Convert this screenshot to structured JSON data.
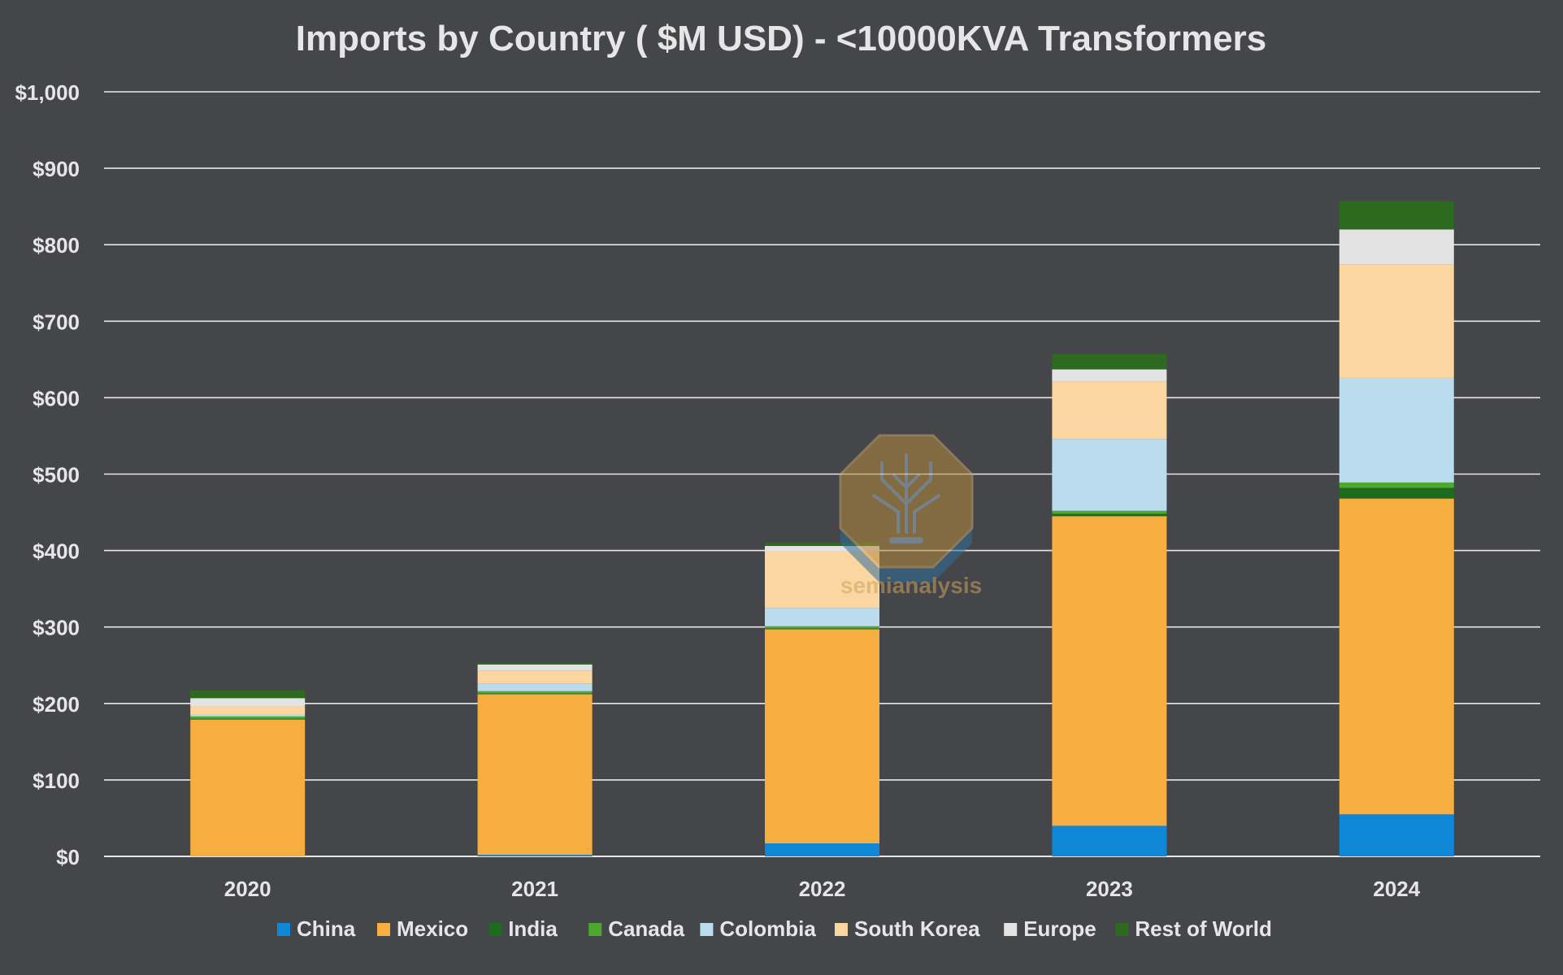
{
  "chart_data": {
    "type": "bar",
    "stacked": true,
    "title": "Imports by Country ( $M USD) - <10000KVA Transformers",
    "xlabel": "",
    "ylabel": "",
    "ylim": [
      0,
      1000
    ],
    "y_ticks": [
      0,
      100,
      200,
      300,
      400,
      500,
      600,
      700,
      800,
      900,
      1000
    ],
    "y_tick_labels": [
      "$0",
      "$100",
      "$200",
      "$300",
      "$400",
      "$500",
      "$600",
      "$700",
      "$800",
      "$900",
      "$1,000"
    ],
    "grid": true,
    "legend_position": "bottom",
    "categories": [
      "2020",
      "2021",
      "2022",
      "2023",
      "2024"
    ],
    "series": [
      {
        "name": "China",
        "color": "#0f86d6",
        "values": [
          0,
          2,
          17,
          40,
          55
        ]
      },
      {
        "name": "Mexico",
        "color": "#f6ae40",
        "values": [
          179,
          210,
          280,
          405,
          413
        ]
      },
      {
        "name": "India",
        "color": "#1e6b1f",
        "values": [
          1,
          1,
          1,
          3,
          14
        ]
      },
      {
        "name": "Canada",
        "color": "#4ea72e",
        "values": [
          3,
          3,
          3,
          4,
          7
        ]
      },
      {
        "name": "Colombia",
        "color": "#badcec",
        "values": [
          2,
          10,
          24,
          94,
          137
        ]
      },
      {
        "name": "South Korea",
        "color": "#fbd6a0",
        "values": [
          11,
          17,
          74,
          75,
          148
        ]
      },
      {
        "name": "Europe",
        "color": "#e3e3e3",
        "values": [
          11,
          8,
          7,
          16,
          46
        ]
      },
      {
        "name": "Rest of World",
        "color": "#2d6a20",
        "values": [
          10,
          2,
          4,
          20,
          37
        ]
      }
    ]
  },
  "watermark": {
    "text": "semianalysis"
  }
}
